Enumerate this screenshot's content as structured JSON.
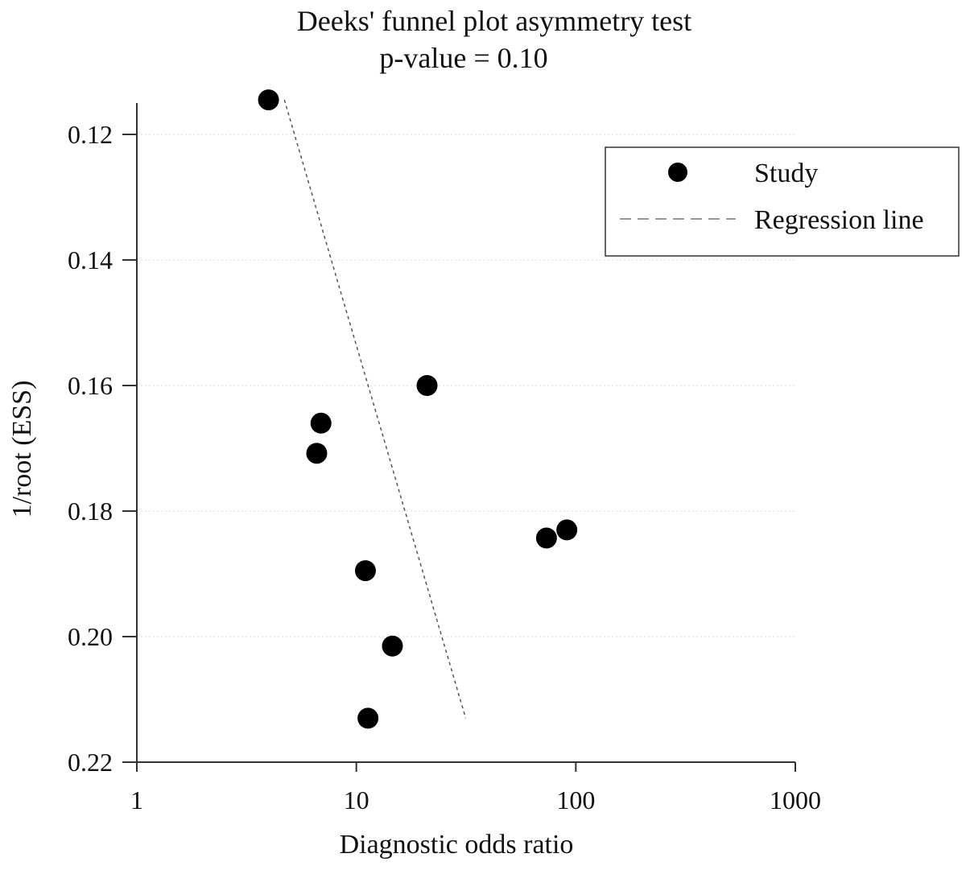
{
  "chart_data": {
    "type": "scatter",
    "title": "Deeks' funnel plot asymmetry test",
    "subtitle": "p-value = 0.10",
    "xlabel": "Diagnostic odds ratio",
    "ylabel": "1/root (ESS)",
    "x_scale": "log",
    "xlim": [
      1,
      1000
    ],
    "x_ticks": [
      1,
      10,
      100,
      1000
    ],
    "x_tick_labels": [
      "1",
      "10",
      "100",
      "1000"
    ],
    "ylim": [
      0.22,
      0.115
    ],
    "y_inverted": true,
    "y_ticks": [
      0.12,
      0.14,
      0.16,
      0.18,
      0.2,
      0.22
    ],
    "y_tick_labels": [
      "0.12",
      "0.14",
      "0.16",
      "0.18",
      "0.20",
      "0.22"
    ],
    "grid": "horizontal",
    "legend_position": "top-right",
    "series": [
      {
        "name": "Study",
        "kind": "points",
        "color": "#000000",
        "points": [
          {
            "x": 3.98,
            "y": 0.1145
          },
          {
            "x": 21.0,
            "y": 0.16
          },
          {
            "x": 6.9,
            "y": 0.166
          },
          {
            "x": 6.6,
            "y": 0.1708
          },
          {
            "x": 91.0,
            "y": 0.183
          },
          {
            "x": 73.5,
            "y": 0.1843
          },
          {
            "x": 11.0,
            "y": 0.1895
          },
          {
            "x": 14.6,
            "y": 0.2015
          },
          {
            "x": 11.3,
            "y": 0.213
          }
        ]
      },
      {
        "name": "Regression line",
        "kind": "line",
        "color": "#555555",
        "points": [
          {
            "x": 4.7,
            "y": 0.1145
          },
          {
            "x": 31.5,
            "y": 0.213
          }
        ]
      }
    ]
  }
}
